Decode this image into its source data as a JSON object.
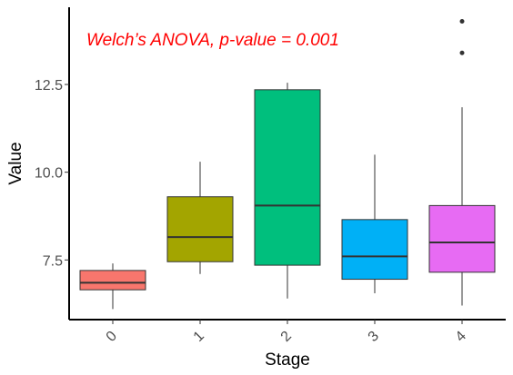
{
  "chart_data": {
    "type": "boxplot",
    "annotation": "Welch’s ANOVA, p-value = 0.001",
    "xlabel": "Stage",
    "ylabel": "Value",
    "categories": [
      "0",
      "1",
      "2",
      "3",
      "4"
    ],
    "yticks": [
      7.5,
      10.0,
      12.5
    ],
    "ytick_labels": [
      "7.5",
      "10.0",
      "12.5"
    ],
    "ylim": [
      5.8,
      14.7
    ],
    "grid": false,
    "legend": "none",
    "boxes": [
      {
        "stage": "0",
        "color": "#F8766D",
        "min": 6.1,
        "q1": 6.65,
        "median": 6.85,
        "q3": 7.2,
        "max": 7.4,
        "outliers": []
      },
      {
        "stage": "1",
        "color": "#A3A500",
        "min": 7.1,
        "q1": 7.45,
        "median": 8.15,
        "q3": 9.3,
        "max": 10.3,
        "outliers": []
      },
      {
        "stage": "2",
        "color": "#00BF7D",
        "min": 6.4,
        "q1": 7.35,
        "median": 9.05,
        "q3": 12.35,
        "max": 12.55,
        "outliers": []
      },
      {
        "stage": "3",
        "color": "#00B0F6",
        "min": 6.55,
        "q1": 6.95,
        "median": 7.6,
        "q3": 8.65,
        "max": 10.5,
        "outliers": []
      },
      {
        "stage": "4",
        "color": "#E76BF3",
        "min": 6.2,
        "q1": 7.15,
        "median": 8.0,
        "q3": 9.05,
        "max": 11.85,
        "outliers": [
          13.4,
          14.3
        ]
      }
    ]
  }
}
